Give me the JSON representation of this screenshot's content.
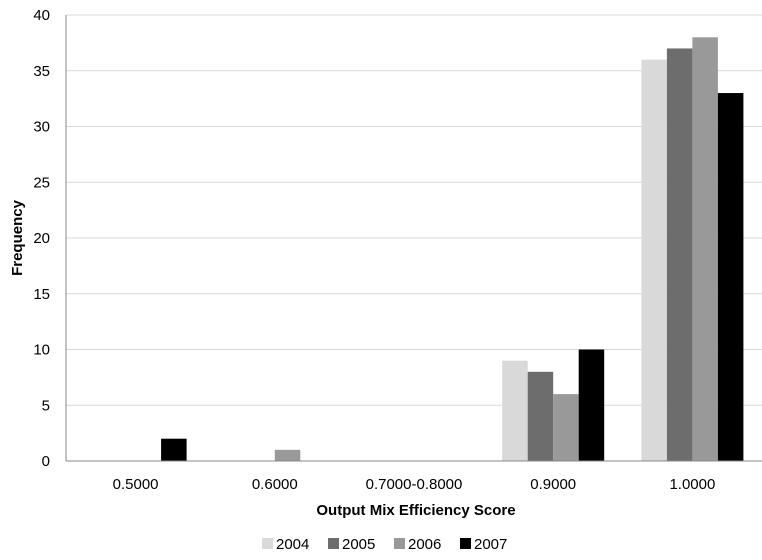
{
  "chart_data": {
    "type": "bar",
    "title": "",
    "xlabel": "Output Mix Efficiency Score",
    "ylabel": "Frequency",
    "categories": [
      "0.5000",
      "0.6000",
      "0.7000-0.8000",
      "0.9000",
      "1.0000"
    ],
    "ylim": [
      0,
      40
    ],
    "yticks": [
      0,
      5,
      10,
      15,
      20,
      25,
      30,
      35,
      40
    ],
    "grid": true,
    "legend_position": "bottom",
    "series": [
      {
        "name": "2004",
        "color": "#d9d9d9",
        "values": [
          0,
          0,
          0,
          9,
          36
        ]
      },
      {
        "name": "2005",
        "color": "#6d6d6d",
        "values": [
          0,
          0,
          0,
          8,
          37
        ]
      },
      {
        "name": "2006",
        "color": "#999999",
        "values": [
          0,
          1,
          0,
          6,
          38
        ]
      },
      {
        "name": "2007",
        "color": "#000000",
        "values": [
          2,
          0,
          0,
          10,
          33
        ]
      }
    ]
  }
}
